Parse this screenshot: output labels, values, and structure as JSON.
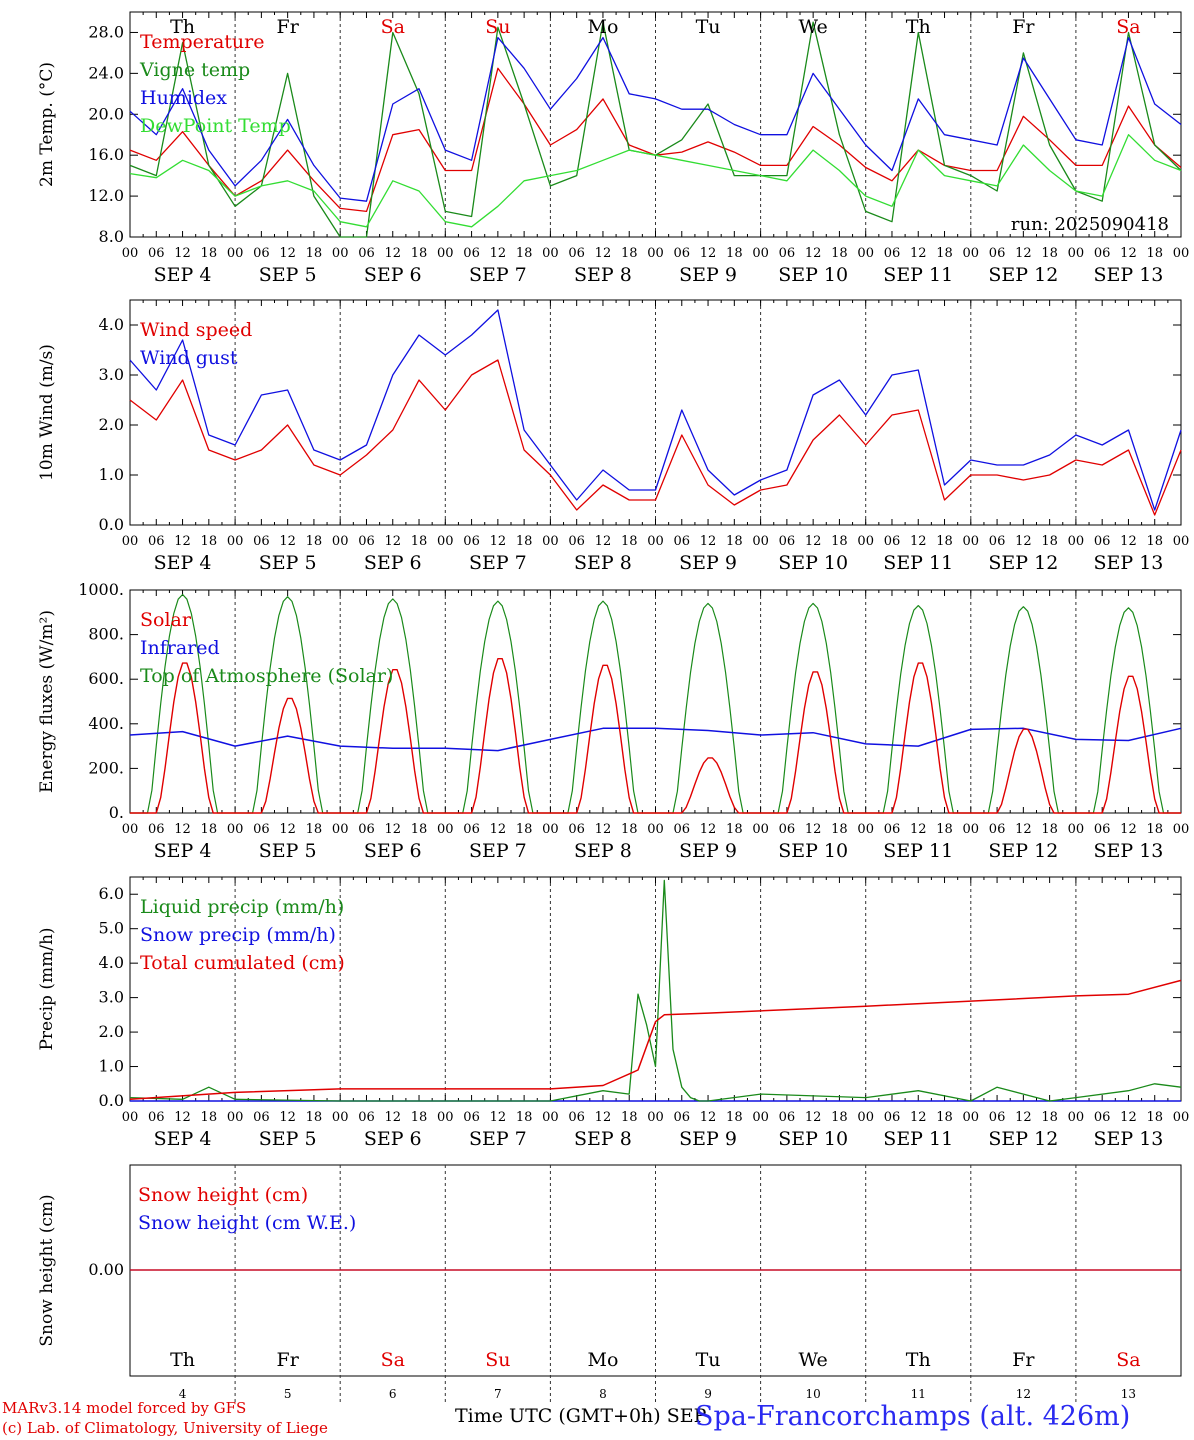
{
  "footer": {
    "model": "MARv3.14 model forced by GFS",
    "credit": "(c) Lab. of Climatology, University of Liege",
    "xlabel": "Time UTC (GMT+0h) SEP",
    "station": "Spa-Francorchamps (alt. 426m)"
  },
  "run_label": "run: 2025090418",
  "days": [
    "4",
    "5",
    "6",
    "7",
    "8",
    "9",
    "10",
    "11",
    "12",
    "13"
  ],
  "day_names": [
    "Th",
    "Fr",
    "Sa",
    "Su",
    "Mo",
    "Tu",
    "We",
    "Th",
    "Fr",
    "Sa"
  ],
  "weekend_color": "#e00000",
  "hour_ticks": [
    "00",
    "06",
    "12",
    "18"
  ],
  "month_label": "SEP",
  "colors": {
    "red": "#e00000",
    "green": "#1a8a1a",
    "blue": "#1010e0",
    "lightgreen": "#33dd33"
  },
  "chart_data": [
    {
      "type": "line",
      "ylabel": "2m Temp. (°C)",
      "ylim": [
        8,
        30
      ],
      "yticks": [
        "8.0",
        "12.0",
        "16.0",
        "20.0",
        "24.0",
        "28.0"
      ],
      "ytick_values": [
        8,
        12,
        16,
        20,
        24,
        28
      ],
      "x_hours": [
        0,
        6,
        12,
        18,
        24,
        30,
        36,
        42,
        48,
        54,
        60,
        66,
        72,
        78,
        84,
        90,
        96,
        102,
        108,
        114,
        120,
        126,
        132,
        138,
        144,
        150,
        156,
        162,
        168,
        174,
        180,
        186,
        192,
        198,
        204,
        210,
        216,
        222,
        228,
        234,
        240
      ],
      "series": [
        {
          "name": "Temperature",
          "color": "red",
          "values": [
            16.5,
            15.5,
            18.3,
            15.0,
            12.0,
            13.5,
            16.5,
            13.5,
            10.8,
            10.5,
            18.0,
            18.5,
            14.5,
            14.5,
            24.5,
            21.0,
            17.0,
            18.5,
            21.5,
            17.0,
            16.0,
            16.3,
            17.3,
            16.3,
            15.0,
            15.0,
            18.8,
            17.0,
            14.8,
            13.5,
            16.5,
            15.0,
            14.5,
            14.5,
            19.8,
            17.5,
            15.0,
            15.0,
            20.8,
            17.0,
            14.8
          ]
        },
        {
          "name": "Vigne temp",
          "color": "green",
          "values": [
            15.0,
            14.0,
            27.0,
            15.0,
            11.0,
            13.0,
            24.0,
            12.0,
            7.5,
            7.0,
            28.0,
            22.0,
            10.5,
            10.0,
            28.5,
            21.0,
            13.0,
            14.0,
            29.0,
            16.5,
            16.0,
            17.5,
            21.0,
            14.0,
            14.0,
            14.0,
            29.0,
            18.0,
            10.5,
            9.5,
            28.0,
            15.0,
            14.0,
            12.5,
            26.0,
            17.0,
            12.5,
            11.5,
            28.0,
            17.0,
            14.5
          ]
        },
        {
          "name": "Humidex",
          "color": "blue",
          "values": [
            20.3,
            18.0,
            22.5,
            16.5,
            13.0,
            15.5,
            19.5,
            15.0,
            11.8,
            11.5,
            21.0,
            22.5,
            16.5,
            15.5,
            27.5,
            24.5,
            20.5,
            23.5,
            27.5,
            22.0,
            21.5,
            20.5,
            20.5,
            19.0,
            18.0,
            18.0,
            24.0,
            20.5,
            17.0,
            14.5,
            21.5,
            18.0,
            17.5,
            17.0,
            25.5,
            21.5,
            17.5,
            17.0,
            27.5,
            21.0,
            19.0
          ]
        },
        {
          "name": "DewPoint Temp",
          "color": "lightgreen",
          "values": [
            14.2,
            13.8,
            15.5,
            14.5,
            12.0,
            13.0,
            13.5,
            12.5,
            9.5,
            9.0,
            13.5,
            12.5,
            9.5,
            9.0,
            11.0,
            13.5,
            14.0,
            14.5,
            15.5,
            16.5,
            16.0,
            15.5,
            15.0,
            14.5,
            14.0,
            13.5,
            16.5,
            14.5,
            12.0,
            11.0,
            16.5,
            14.0,
            13.5,
            13.0,
            17.0,
            14.5,
            12.5,
            12.0,
            18.0,
            15.5,
            14.5
          ]
        }
      ],
      "legend": "top-left"
    },
    {
      "type": "line",
      "ylabel": "10m Wind (m/s)",
      "ylim": [
        0,
        4.5
      ],
      "yticks": [
        "0.0",
        "1.0",
        "2.0",
        "3.0",
        "4.0"
      ],
      "ytick_values": [
        0,
        1,
        2,
        3,
        4
      ],
      "x_hours": [
        0,
        6,
        12,
        18,
        24,
        30,
        36,
        42,
        48,
        54,
        60,
        66,
        72,
        78,
        84,
        90,
        96,
        102,
        108,
        114,
        120,
        126,
        132,
        138,
        144,
        150,
        156,
        162,
        168,
        174,
        180,
        186,
        192,
        198,
        204,
        210,
        216,
        222,
        228,
        234,
        240
      ],
      "series": [
        {
          "name": "Wind speed",
          "color": "red",
          "values": [
            2.5,
            2.1,
            2.9,
            1.5,
            1.3,
            1.5,
            2.0,
            1.2,
            1.0,
            1.4,
            1.9,
            2.9,
            2.3,
            3.0,
            3.3,
            1.5,
            1.0,
            0.3,
            0.8,
            0.5,
            0.5,
            1.8,
            0.8,
            0.4,
            0.7,
            0.8,
            1.7,
            2.2,
            1.6,
            2.2,
            2.3,
            0.5,
            1.0,
            1.0,
            0.9,
            1.0,
            1.3,
            1.2,
            1.5,
            0.2,
            1.5
          ]
        },
        {
          "name": "Wind gust",
          "color": "blue",
          "values": [
            3.3,
            2.7,
            3.7,
            1.8,
            1.6,
            2.6,
            2.7,
            1.5,
            1.3,
            1.6,
            3.0,
            3.8,
            3.4,
            3.8,
            4.3,
            1.9,
            1.2,
            0.5,
            1.1,
            0.7,
            0.7,
            2.3,
            1.1,
            0.6,
            0.9,
            1.1,
            2.6,
            2.9,
            2.2,
            3.0,
            3.1,
            0.8,
            1.3,
            1.2,
            1.2,
            1.4,
            1.8,
            1.6,
            1.9,
            0.3,
            1.9
          ]
        }
      ],
      "legend": "top-left"
    },
    {
      "type": "line",
      "ylabel": "Energy fluxes (W/m²)",
      "ylim": [
        0,
        1000
      ],
      "yticks": [
        "0.",
        "200.",
        "400.",
        "600.",
        "800.",
        "1000."
      ],
      "ytick_values": [
        0,
        200,
        400,
        600,
        800,
        1000
      ],
      "solar_noon_peaks": [
        680,
        520,
        650,
        700,
        670,
        250,
        640,
        680,
        380,
        620
      ],
      "infrared_x_hours": [
        0,
        12,
        24,
        36,
        48,
        60,
        72,
        84,
        96,
        108,
        120,
        132,
        144,
        156,
        168,
        180,
        192,
        204,
        216,
        228,
        240
      ],
      "infrared_values": [
        350,
        365,
        300,
        345,
        300,
        290,
        290,
        280,
        330,
        380,
        380,
        370,
        350,
        360,
        310,
        300,
        375,
        380,
        330,
        325,
        380
      ],
      "toa_peaks": [
        980,
        970,
        960,
        950,
        950,
        940,
        940,
        930,
        925,
        920
      ],
      "series": [
        {
          "name": "Solar",
          "color": "red"
        },
        {
          "name": "Infrared",
          "color": "blue"
        },
        {
          "name": "Top of Atmosphere (Solar)",
          "color": "green"
        }
      ],
      "legend": "top-left"
    },
    {
      "type": "line",
      "ylabel": "Precip (mm/h)",
      "ylim": [
        0,
        6.5
      ],
      "yticks": [
        "0.0",
        "1.0",
        "2.0",
        "3.0",
        "4.0",
        "5.0",
        "6.0"
      ],
      "ytick_values": [
        0,
        1,
        2,
        3,
        4,
        5,
        6
      ],
      "liquid_x_hours": [
        0,
        12,
        18,
        24,
        48,
        96,
        108,
        114,
        116,
        118,
        120,
        122,
        124,
        126,
        128,
        130,
        132,
        144,
        168,
        180,
        192,
        198,
        210,
        216,
        228,
        234,
        240
      ],
      "liquid_values": [
        0.1,
        0.05,
        0.4,
        0.05,
        0.0,
        0.0,
        0.3,
        0.2,
        3.1,
        2.2,
        1.0,
        6.4,
        1.5,
        0.4,
        0.1,
        0.0,
        0.0,
        0.2,
        0.1,
        0.3,
        0.0,
        0.4,
        0.0,
        0.1,
        0.3,
        0.5,
        0.4
      ],
      "total_x_hours": [
        0,
        24,
        48,
        96,
        108,
        116,
        120,
        122,
        132,
        168,
        192,
        216,
        228,
        240
      ],
      "total_values": [
        0.05,
        0.25,
        0.35,
        0.35,
        0.45,
        0.9,
        2.3,
        2.5,
        2.55,
        2.75,
        2.9,
        3.05,
        3.1,
        3.5
      ],
      "series": [
        {
          "name": "Liquid precip (mm/h)",
          "color": "green"
        },
        {
          "name": "Snow precip (mm/h)",
          "color": "blue"
        },
        {
          "name": "Total cumulated (cm)",
          "color": "red"
        }
      ],
      "legend": "top-left"
    },
    {
      "type": "line",
      "ylabel": "Snow height (cm)",
      "yticks": [
        "0.00"
      ],
      "ytick_values": [
        0
      ],
      "series": [
        {
          "name": "Snow height (cm)",
          "color": "red",
          "values": [
            0,
            0
          ]
        },
        {
          "name": "Snow height (cm W.E.)",
          "color": "blue",
          "values": [
            0,
            0
          ]
        }
      ],
      "legend": "top-left"
    }
  ]
}
